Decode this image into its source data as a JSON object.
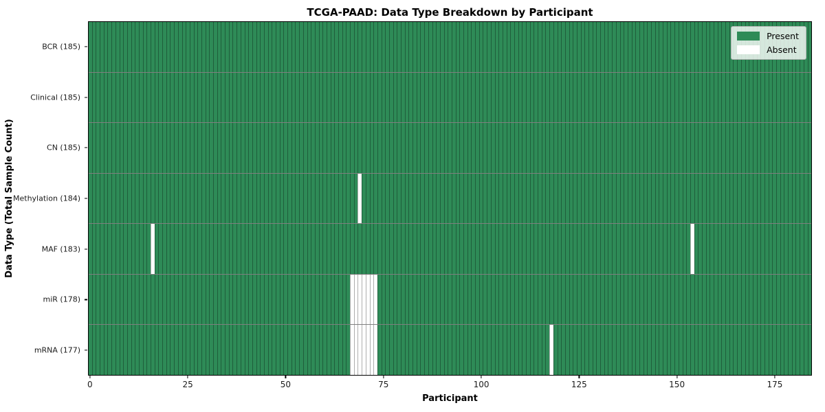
{
  "chart_data": {
    "type": "heatmap",
    "title": "TCGA-PAAD: Data Type Breakdown by Participant",
    "xlabel": "Participant",
    "ylabel": "Data Type (Total Sample Count)",
    "n_participants": 185,
    "xlim": [
      -0.5,
      184.5
    ],
    "x_ticks": [
      0,
      25,
      50,
      75,
      100,
      125,
      150,
      175
    ],
    "grid": "cell-edges-on",
    "legend_position": "upper right",
    "colors": {
      "present": "#2e8b57",
      "absent": "#ffffff",
      "cell_edge": "rgba(0,0,0,0.32)",
      "row_divider": "rgba(0,0,0,0.5)",
      "plot_border": "#000000",
      "legend_bg": "rgba(255,255,255,0.8)"
    },
    "legend": [
      {
        "label": "Present",
        "color": "#2e8b57"
      },
      {
        "label": "Absent",
        "color": "#ffffff"
      }
    ],
    "rows": [
      {
        "label": "BCR (185)",
        "data_type": "BCR",
        "present_count": 185,
        "absent_participants": []
      },
      {
        "label": "Clinical (185)",
        "data_type": "Clinical",
        "present_count": 185,
        "absent_participants": []
      },
      {
        "label": "CN (185)",
        "data_type": "CN",
        "present_count": 185,
        "absent_participants": []
      },
      {
        "label": "Methylation (184)",
        "data_type": "Methylation",
        "present_count": 184,
        "absent_participants": [
          69
        ]
      },
      {
        "label": "MAF (183)",
        "data_type": "MAF",
        "present_count": 183,
        "absent_participants": [
          16,
          154
        ]
      },
      {
        "label": "miR (178)",
        "data_type": "miR",
        "present_count": 178,
        "absent_participants": [
          67,
          68,
          69,
          70,
          71,
          72,
          73
        ]
      },
      {
        "label": "mRNA (177)",
        "data_type": "mRNA",
        "present_count": 177,
        "absent_participants": [
          67,
          68,
          69,
          70,
          71,
          72,
          73,
          118
        ]
      }
    ]
  }
}
